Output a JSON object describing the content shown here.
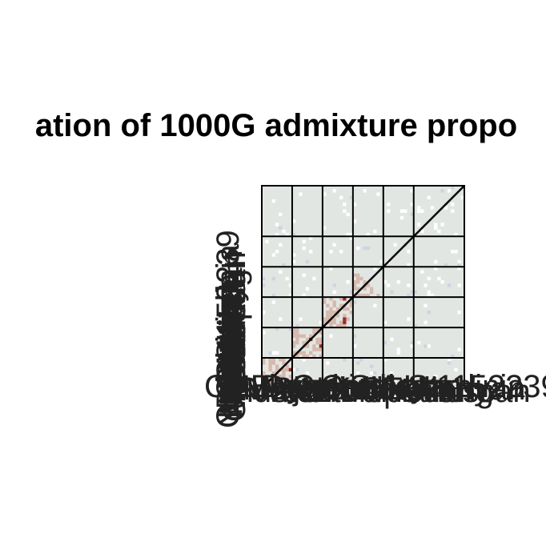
{
  "chart_data": {
    "type": "heatmap",
    "title": "ation of 1000G admixture propo",
    "xlabel": "",
    "ylabel": "",
    "x_tick_labels": [
      "CHB",
      "YRI",
      "Cluster",
      "Luhya",
      "Maasai",
      "Wolof",
      "Dunaweb",
      "Bjarsch",
      "Fon",
      "Celtic",
      "Nordic",
      "Ethiopian",
      "Comics",
      "Kinh",
      "Dai",
      "St.Ho",
      "CEU",
      "Finnish",
      "Aryan",
      "Italian",
      "Guang",
      "Sardinia",
      "Kenyan",
      "Tuscan",
      "1152239"
    ],
    "y_tick_labels": [
      "CHB",
      "YRI",
      "Cluster",
      "Luhya",
      "Maasai",
      "Wolof",
      "Dunaweb",
      "Bjarsch",
      "Fon",
      "Celtic",
      "Nordic",
      "Ethiopian",
      "Comics",
      "Kinh",
      "Dai",
      "St.Ho",
      "CEU",
      "Finnish",
      "Aryan",
      "Italian",
      "Guang",
      "Sardinia",
      "Kenyan",
      "Tuscan",
      "1152239"
    ],
    "n_cells": 60,
    "block_boundaries": [
      0,
      9,
      18,
      27,
      36,
      45,
      60
    ],
    "color_scale": {
      "low": "#e2e6e2",
      "mid": "#d7b8ac",
      "high": "#9c2b26",
      "zero": "#ffffff",
      "tinted_low": "#cfd3e2"
    },
    "diagonal_value": 1,
    "grid": true,
    "legend": "none"
  }
}
